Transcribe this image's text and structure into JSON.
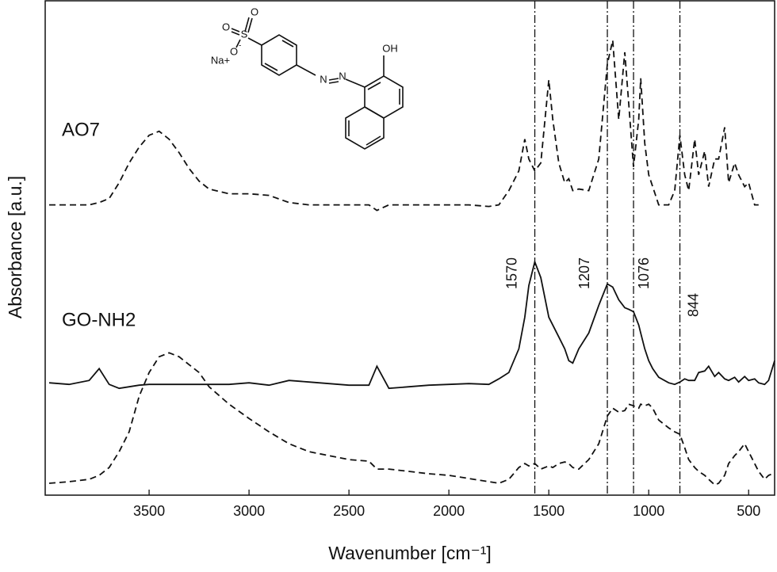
{
  "chart_data": {
    "type": "line",
    "xlabel": "Wavenumber [cm⁻¹]",
    "ylabel": "Absorbance [a.u.]",
    "xlim": [
      4020,
      370
    ],
    "ylim": [
      0,
      625
    ],
    "xticks": [
      3500,
      3000,
      2500,
      2000,
      1500,
      1000,
      500
    ],
    "markers": [
      1570,
      1207,
      1076,
      844
    ],
    "x": [
      4000,
      3900,
      3800,
      3750,
      3700,
      3650,
      3600,
      3550,
      3500,
      3450,
      3400,
      3350,
      3300,
      3250,
      3200,
      3100,
      3000,
      2900,
      2800,
      2700,
      2600,
      2500,
      2400,
      2360,
      2300,
      2200,
      2100,
      2000,
      1900,
      1800,
      1750,
      1700,
      1650,
      1620,
      1600,
      1570,
      1540,
      1500,
      1480,
      1450,
      1420,
      1400,
      1380,
      1350,
      1300,
      1250,
      1207,
      1180,
      1150,
      1120,
      1100,
      1076,
      1050,
      1040,
      1020,
      1000,
      980,
      950,
      900,
      870,
      844,
      820,
      800,
      770,
      750,
      720,
      700,
      670,
      650,
      620,
      600,
      570,
      550,
      520,
      500,
      470,
      450,
      420,
      400,
      370
    ],
    "series": [
      {
        "name": "AO7",
        "color": "#111111",
        "dash": "8,5",
        "values": [
          367,
          367,
          367,
          370,
          375,
          395,
          420,
          440,
          455,
          460,
          450,
          433,
          413,
          397,
          387,
          381,
          381,
          379,
          370,
          367,
          367,
          367,
          367,
          360,
          367,
          367,
          367,
          367,
          367,
          365,
          367,
          385,
          410,
          450,
          425,
          410,
          420,
          525,
          475,
          420,
          395,
          400,
          385,
          387,
          385,
          425,
          545,
          575,
          475,
          560,
          495,
          415,
          475,
          527,
          445,
          405,
          390,
          367,
          367,
          385,
          455,
          405,
          385,
          450,
          405,
          435,
          390,
          425,
          425,
          465,
          395,
          420,
          405,
          390,
          395,
          367,
          367,
          null,
          null,
          null
        ]
      },
      {
        "name": "GO-NH2",
        "color": "#111111",
        "dash": "none",
        "values": [
          142,
          140,
          145,
          160,
          140,
          135,
          137,
          139,
          140,
          140,
          140,
          140,
          140,
          140,
          140,
          140,
          142,
          139,
          145,
          143,
          141,
          139,
          139,
          163,
          135,
          137,
          139,
          140,
          141,
          140,
          147,
          155,
          185,
          225,
          265,
          295,
          275,
          225,
          215,
          200,
          185,
          170,
          167,
          185,
          205,
          240,
          267,
          263,
          247,
          237,
          235,
          232,
          215,
          205,
          185,
          170,
          160,
          149,
          142,
          140,
          143,
          147,
          145,
          145,
          155,
          157,
          163,
          150,
          155,
          147,
          145,
          149,
          143,
          150,
          145,
          147,
          142,
          140,
          145,
          170
        ]
      },
      {
        "color": "#111111",
        "dash": "8,5",
        "values": [
          15,
          17,
          20,
          25,
          35,
          55,
          80,
          125,
          155,
          175,
          180,
          175,
          165,
          155,
          137,
          115,
          97,
          80,
          65,
          55,
          50,
          45,
          43,
          33,
          33,
          30,
          27,
          25,
          21,
          17,
          15,
          20,
          35,
          40,
          37,
          40,
          33,
          37,
          35,
          40,
          42,
          40,
          35,
          33,
          45,
          65,
          100,
          110,
          105,
          107,
          115,
          113,
          110,
          115,
          113,
          115,
          110,
          95,
          85,
          80,
          77,
          60,
          45,
          35,
          30,
          25,
          20,
          13,
          15,
          25,
          40,
          50,
          55,
          65,
          55,
          40,
          30,
          20,
          25,
          28
        ]
      }
    ],
    "structure": {
      "labels": [
        "O",
        "O",
        "S",
        "O",
        "-",
        "Na+",
        "N",
        "N",
        "OH"
      ]
    }
  }
}
